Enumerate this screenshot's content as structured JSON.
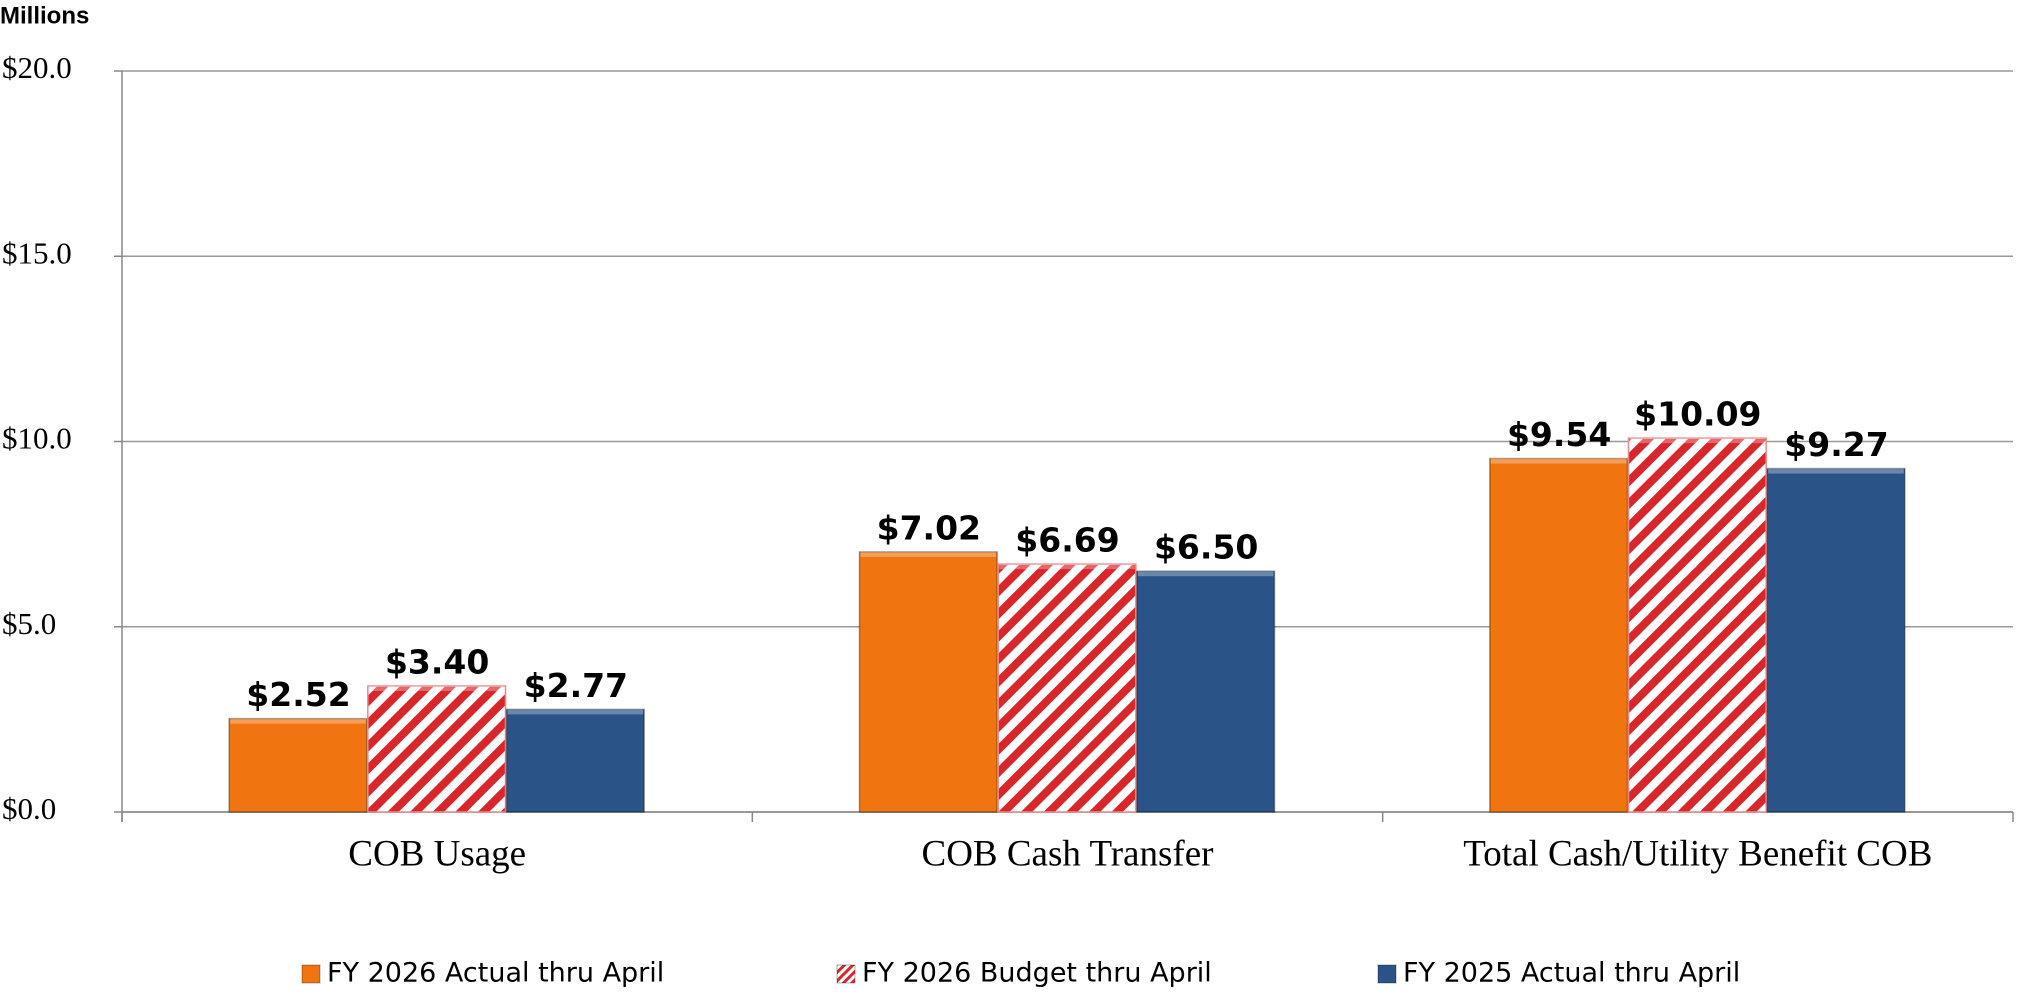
{
  "chart_data": {
    "type": "bar",
    "y_axis_label": "Millions",
    "categories": [
      "COB Usage",
      "COB Cash Transfer",
      "Total Cash/Utility Benefit COB"
    ],
    "series": [
      {
        "name": "FY 2026 Actual thru April",
        "color": "#f07410",
        "values": [
          2.52,
          7.02,
          9.54
        ],
        "value_labels": [
          "$2.52",
          "$7.02",
          "$9.54"
        ]
      },
      {
        "name": "FY 2026 Budget thru April",
        "color": "#d9262b",
        "hatch": true,
        "values": [
          3.4,
          6.69,
          10.09
        ],
        "value_labels": [
          "$3.40",
          "$6.69",
          "$10.09"
        ]
      },
      {
        "name": "FY 2025 Actual thru April",
        "color": "#2a5488",
        "values": [
          2.77,
          6.5,
          9.27
        ],
        "value_labels": [
          "$2.77",
          "$6.50",
          "$9.27"
        ]
      }
    ],
    "ylim": [
      0,
      20
    ],
    "yticks": [
      {
        "value": 0,
        "label": "$0.0"
      },
      {
        "value": 5,
        "label": "$5.0"
      },
      {
        "value": 10,
        "label": "$10.0"
      },
      {
        "value": 15,
        "label": "$15.0"
      },
      {
        "value": 20,
        "label": "$20.0"
      }
    ],
    "grid": true,
    "legend": "bottom"
  }
}
